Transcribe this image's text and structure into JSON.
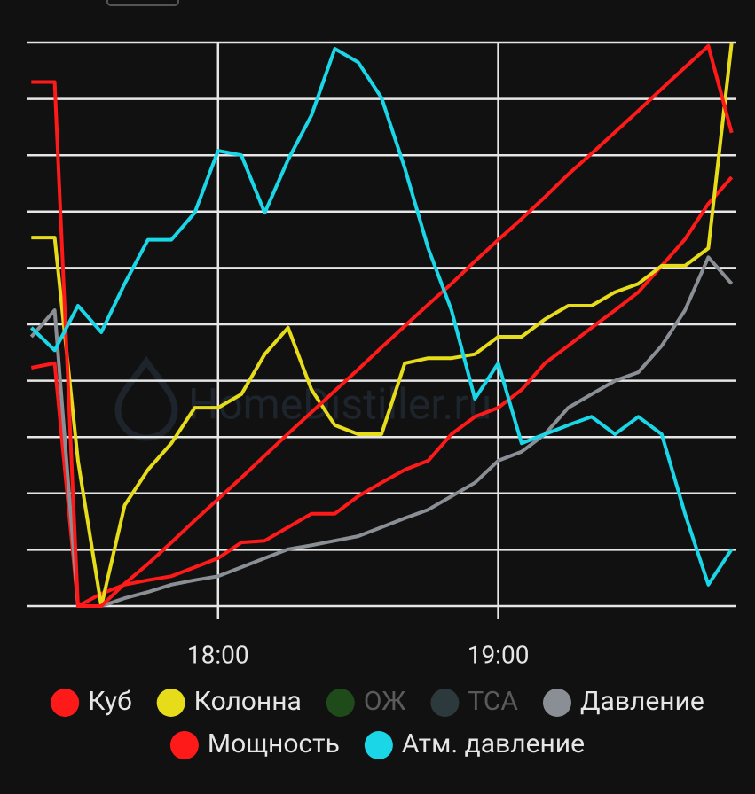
{
  "chart_data": {
    "type": "line",
    "watermark": "HomeDistiller.ru",
    "x": [
      1040,
      1045,
      1050,
      1055,
      1060,
      1065,
      1070,
      1075,
      1080,
      1085,
      1090,
      1095,
      1100,
      1105,
      1110,
      1115,
      1120,
      1125,
      1130,
      1135,
      1140,
      1145,
      1150,
      1155,
      1160,
      1165,
      1170,
      1175,
      1180,
      1185,
      1190
    ],
    "xlim": [
      1039,
      1191
    ],
    "xticks": [
      {
        "value": 1080,
        "label": "18:00"
      },
      {
        "value": 1140,
        "label": "19:00"
      }
    ],
    "ylim": [
      0,
      10
    ],
    "yticks": [
      0,
      1,
      2,
      3,
      4,
      5,
      6,
      7,
      8,
      9,
      10
    ],
    "ytick_labels": false,
    "grid": true,
    "legend_rows": [
      5,
      2
    ],
    "series": [
      {
        "name": "Куб",
        "color": "#ff1a1a",
        "values": [
          4.23,
          4.31,
          0,
          0.22,
          0.38,
          0.46,
          0.53,
          0.69,
          0.85,
          1.13,
          1.16,
          1.4,
          1.64,
          1.64,
          1.95,
          2.19,
          2.42,
          2.58,
          3.05,
          3.36,
          3.52,
          3.84,
          4.31,
          4.62,
          4.94,
          5.25,
          5.57,
          6.04,
          6.51,
          7.14,
          7.61
        ]
      },
      {
        "name": "Колонна",
        "color": "#e6dc1a",
        "values": [
          6.54,
          6.54,
          2.58,
          0,
          1.79,
          2.42,
          2.89,
          3.52,
          3.52,
          3.76,
          4.47,
          4.94,
          3.84,
          3.21,
          3.05,
          3.05,
          4.31,
          4.4,
          4.4,
          4.47,
          4.78,
          4.78,
          5.09,
          5.33,
          5.33,
          5.57,
          5.72,
          6.04,
          6.04,
          6.35,
          10
        ]
      },
      {
        "name": "ОЖ",
        "color": "#1f4a1a",
        "hidden": true,
        "values": [
          null,
          null,
          null,
          null,
          null,
          null,
          null,
          null,
          null,
          null,
          null,
          null,
          null,
          null,
          null,
          null,
          null,
          null,
          null,
          null,
          null,
          null,
          null,
          null,
          null,
          null,
          null,
          null,
          null,
          null,
          null
        ]
      },
      {
        "name": "ТСА",
        "color": "#2c3a3e",
        "hidden": true,
        "values": [
          null,
          null,
          null,
          null,
          null,
          null,
          null,
          null,
          null,
          null,
          null,
          null,
          null,
          null,
          null,
          null,
          null,
          null,
          null,
          null,
          null,
          null,
          null,
          null,
          null,
          null,
          null,
          null,
          null,
          null,
          null
        ]
      },
      {
        "name": "Давление",
        "color": "#8a8f95",
        "values": [
          4.78,
          5.25,
          0,
          0,
          0.14,
          0.25,
          0.38,
          0.46,
          0.53,
          0.69,
          0.85,
          1.01,
          1.08,
          1.16,
          1.24,
          1.4,
          1.56,
          1.71,
          1.95,
          2.19,
          2.58,
          2.74,
          3.05,
          3.52,
          3.76,
          4.0,
          4.15,
          4.62,
          5.25,
          6.19,
          5.72
        ]
      },
      {
        "name": "Мощность",
        "color": "#ff1a1a",
        "values": [
          9.3,
          9.3,
          0,
          0,
          0.4,
          0.75,
          1.13,
          1.52,
          1.9,
          2.28,
          2.67,
          3.06,
          3.44,
          3.82,
          4.2,
          4.59,
          4.97,
          5.35,
          5.72,
          6.12,
          6.5,
          6.87,
          7.26,
          7.66,
          8.03,
          8.41,
          8.79,
          9.18,
          9.56,
          9.94,
          8.4
        ]
      },
      {
        "name": "Атм. давление",
        "color": "#1ad6e6",
        "values": [
          4.94,
          4.54,
          5.33,
          4.86,
          5.72,
          6.5,
          6.5,
          6.98,
          8.08,
          8.0,
          6.98,
          7.92,
          8.71,
          9.89,
          9.65,
          9.02,
          7.77,
          6.35,
          5.25,
          3.68,
          4.31,
          2.89,
          3.05,
          3.21,
          3.36,
          3.05,
          3.36,
          3.05,
          1.64,
          0.38,
          1.01
        ]
      }
    ]
  }
}
